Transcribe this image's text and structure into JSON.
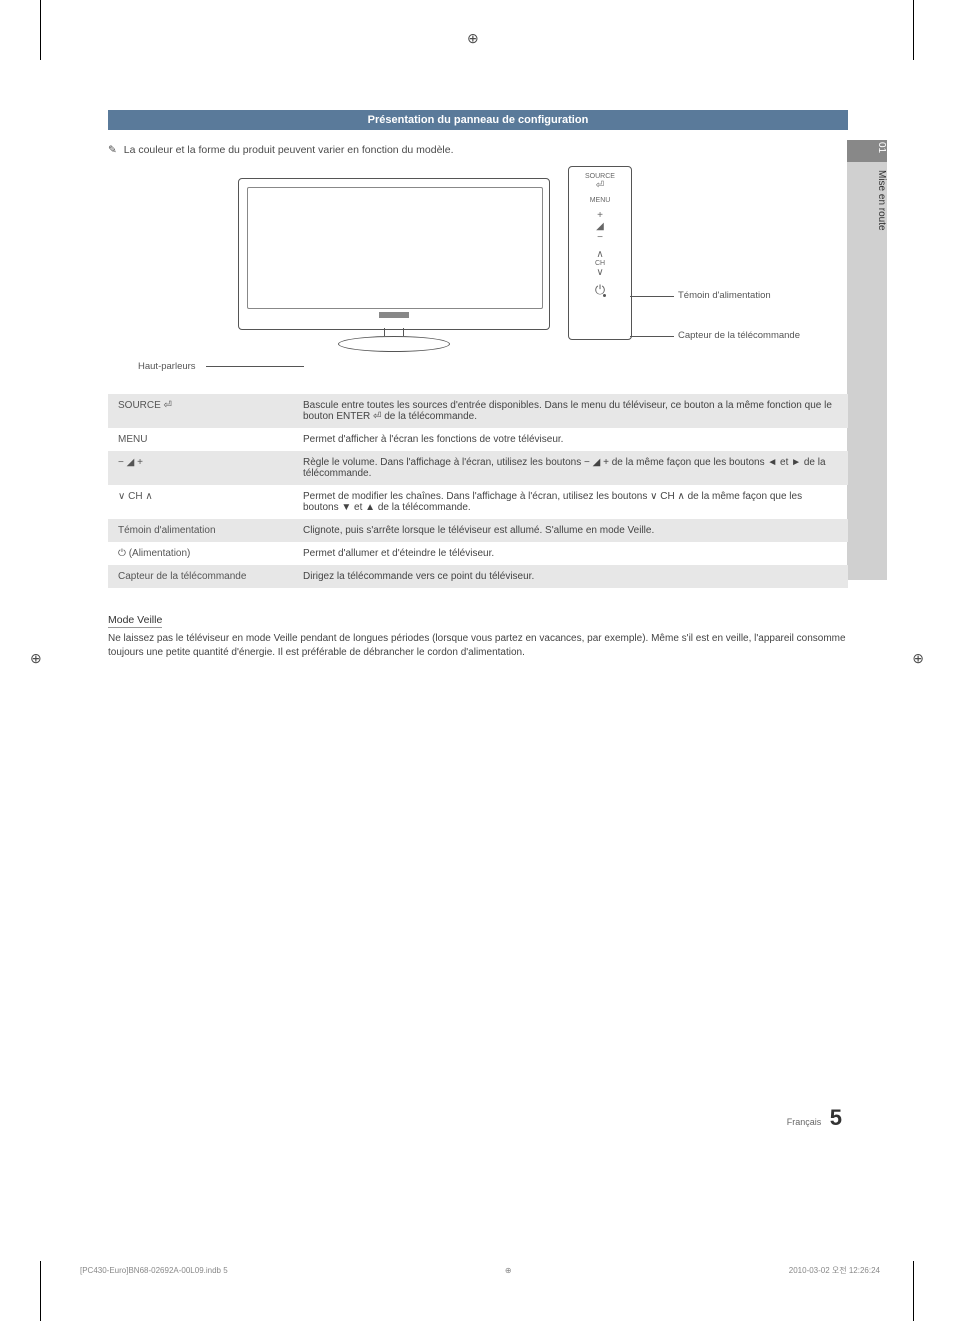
{
  "registration_mark": "⊕",
  "side_tab": {
    "num": "01",
    "label": "Mise en route"
  },
  "header": {
    "title": "Présentation du panneau de configuration"
  },
  "note": {
    "icon": "✎",
    "text": "La couleur et la forme du produit peuvent varier en fonction du modèle."
  },
  "diagram": {
    "speaker_label": "Haut-parleurs",
    "led_label": "Témoin d'alimentation",
    "remote_label": "Capteur de la télécommande",
    "panel": {
      "source": "SOURCE",
      "enter_icon": "⏎",
      "menu": "MENU",
      "plus": "+",
      "vol": "◢",
      "minus": "−",
      "ch_up": "∧",
      "ch": "CH",
      "ch_down": "∨",
      "power": "⏻"
    }
  },
  "table": {
    "rows": [
      {
        "label": "SOURCE ⏎",
        "desc": "Bascule entre toutes les sources d'entrée disponibles. Dans le menu du téléviseur, ce bouton a la même fonction que le bouton ENTER ⏎ de la télécommande."
      },
      {
        "label": "MENU",
        "desc": "Permet d'afficher à l'écran les fonctions de votre téléviseur."
      },
      {
        "label": "− ◢ +",
        "desc": "Règle le volume. Dans l'affichage à l'écran, utilisez les boutons − ◢ + de la même façon que les boutons ◄ et ► de la télécommande."
      },
      {
        "label": "∨ CH ∧",
        "desc": "Permet de modifier les chaînes. Dans l'affichage à l'écran, utilisez les boutons ∨ CH ∧ de la même façon que les boutons ▼ et ▲ de la télécommande."
      },
      {
        "label": "Témoin d'alimentation",
        "desc": "Clignote, puis s'arrête lorsque le téléviseur est allumé. S'allume en mode Veille."
      },
      {
        "label": "⏻ (Alimentation)",
        "desc": "Permet d'allumer et d'éteindre le téléviseur."
      },
      {
        "label": "Capteur de la télécommande",
        "desc": "Dirigez la télécommande vers ce point du téléviseur."
      }
    ]
  },
  "standby": {
    "heading": "Mode Veille",
    "text": "Ne laissez pas le téléviseur en mode Veille pendant de longues périodes (lorsque vous partez en vacances, par exemple). Même s'il est en veille, l'appareil consomme toujours une petite quantité d'énergie. Il est préférable de débrancher le cordon d'alimentation."
  },
  "footer": {
    "lang": "Français",
    "page": "5",
    "file": "[PC430-Euro]BN68-02692A-00L09.indb   5",
    "timestamp": "2010-03-02   오전 12:26:24"
  },
  "colors": {
    "header_bg": "#5a7a9a",
    "shade_row": "#e7e7e7",
    "side_tab_bg": "#d0d0d0",
    "side_tab_top": "#888888"
  }
}
